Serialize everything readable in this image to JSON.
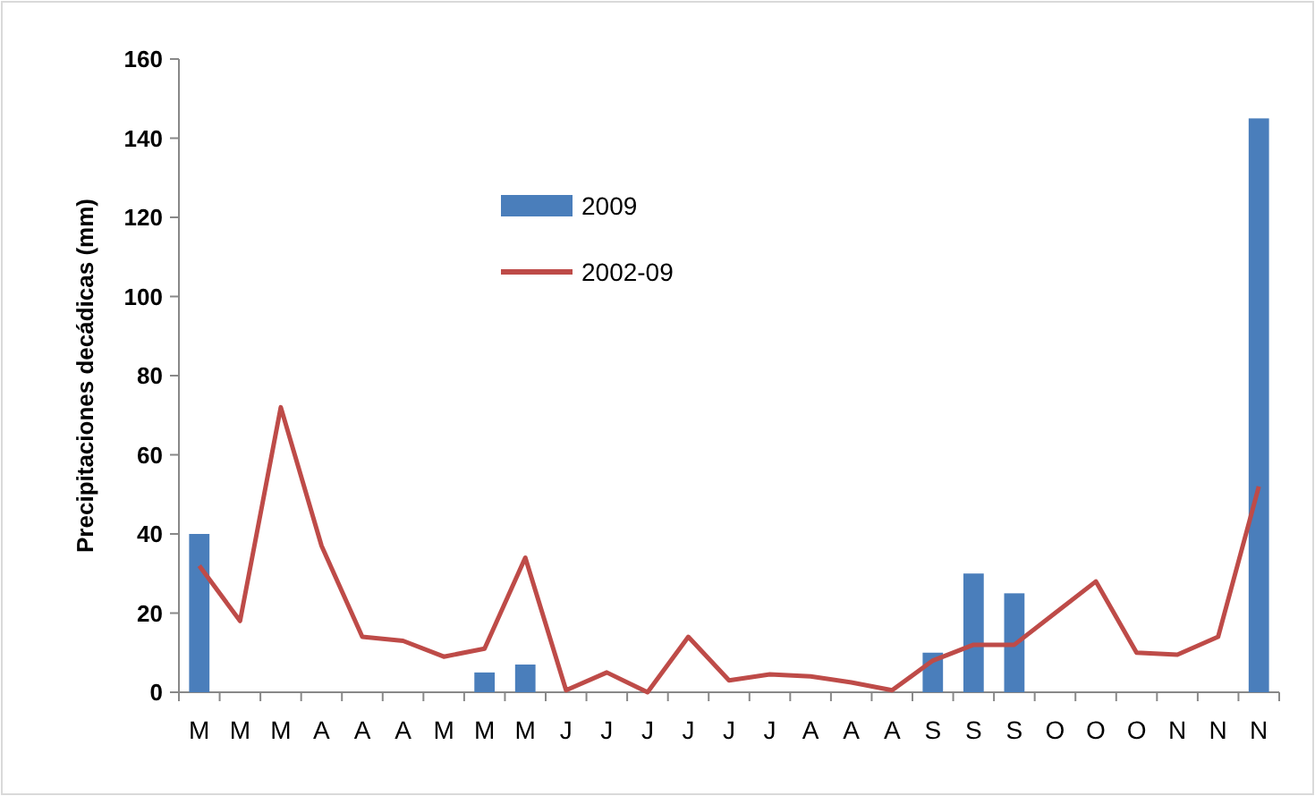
{
  "chart_data": {
    "type": "bar",
    "ylabel": "Precipitaciones decádicas (mm)",
    "categories": [
      "M",
      "M",
      "M",
      "A",
      "A",
      "A",
      "M",
      "M",
      "M",
      "J",
      "J",
      "J",
      "J",
      "J",
      "J",
      "A",
      "A",
      "A",
      "S",
      "S",
      "S",
      "O",
      "O",
      "O",
      "N",
      "N",
      "N"
    ],
    "series": [
      {
        "name": "2009",
        "color": "#4a7ebb",
        "values": [
          40,
          null,
          null,
          null,
          null,
          null,
          null,
          5,
          7,
          null,
          null,
          null,
          null,
          null,
          null,
          null,
          null,
          null,
          10,
          30,
          25,
          null,
          null,
          null,
          null,
          null,
          145
        ]
      },
      {
        "name": "2002-09",
        "type": "line",
        "color": "#be4b48",
        "values": [
          32,
          18,
          72,
          37,
          14,
          13,
          9,
          11,
          34,
          0.5,
          5,
          0,
          14,
          3,
          4.5,
          4,
          2.5,
          0.5,
          8,
          12,
          12,
          20,
          28,
          10,
          9.5,
          14,
          52
        ]
      }
    ],
    "ylim": [
      0,
      160
    ],
    "yticks": [
      0,
      20,
      40,
      60,
      80,
      100,
      120,
      140,
      160
    ],
    "grid": false,
    "legend": "top",
    "marker": "none"
  }
}
